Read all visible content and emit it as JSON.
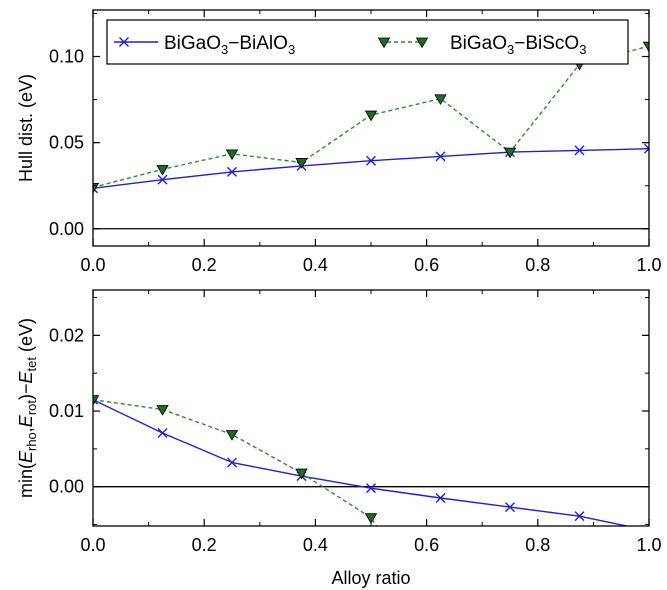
{
  "chart_data": [
    {
      "type": "line",
      "xlabel": "",
      "ylabel": "Hull dist. (eV)",
      "xlim": [
        0,
        1
      ],
      "ylim": [
        -0.01,
        0.127
      ],
      "xticks": [
        "0.0",
        "0.2",
        "0.4",
        "0.6",
        "0.8",
        "1.0"
      ],
      "yticks": [
        "0.00",
        "0.05",
        "0.10"
      ],
      "reference_line": 0,
      "grid": false,
      "legend": "top",
      "series": [
        {
          "name": "BiGaO3−BiAlO3",
          "name_parts": {
            "a": "BiGaO",
            "a_sub": "3",
            "sep": "−BiAlO",
            "b_sub": "3"
          },
          "marker": "x",
          "line": "solid",
          "color": "#1f1fd6",
          "x": [
            0,
            0.125,
            0.25,
            0.375,
            0.5,
            0.625,
            0.75,
            0.875,
            1.0
          ],
          "y": [
            0.0235,
            0.0285,
            0.033,
            0.0365,
            0.0395,
            0.042,
            0.0445,
            0.0455,
            0.0465
          ]
        },
        {
          "name": "BiGaO3−BiScO3",
          "name_parts": {
            "a": "BiGaO",
            "a_sub": "3",
            "sep": "−BiScO",
            "b_sub": "3"
          },
          "marker": "triangle-down",
          "line": "dashed",
          "color": "#2e8b2e",
          "fill": "#1f6b1f",
          "x": [
            0,
            0.125,
            0.25,
            0.375,
            0.5,
            0.625,
            0.75,
            0.875,
            1.0
          ],
          "y": [
            0.024,
            0.0345,
            0.0435,
            0.0385,
            0.066,
            0.0755,
            0.0445,
            0.0955,
            0.106
          ]
        }
      ]
    },
    {
      "type": "line",
      "xlabel": "Alloy ratio",
      "ylabel_parts": {
        "pre": "min(",
        "e1": "E",
        "s1": "rho",
        "comma": ",",
        "e2": "E",
        "s2": "rot",
        "mid": ")−",
        "e3": "E",
        "s3": "tet",
        "unit": " (eV)"
      },
      "xlim": [
        0,
        1
      ],
      "ylim": [
        -0.0052,
        0.026
      ],
      "xticks": [
        "0.0",
        "0.2",
        "0.4",
        "0.6",
        "0.8",
        "1.0"
      ],
      "yticks": [
        "0.00",
        "0.01",
        "0.02"
      ],
      "reference_line": 0,
      "grid": false,
      "series": [
        {
          "name": "BiGaO3−BiAlO3",
          "marker": "x",
          "line": "solid",
          "color": "#1f1fd6",
          "x": [
            0,
            0.125,
            0.25,
            0.375,
            0.5,
            0.625,
            0.75,
            0.875,
            0.96
          ],
          "y": [
            0.0115,
            0.0071,
            0.0032,
            0.0014,
            -0.0002,
            -0.0015,
            -0.0027,
            -0.0039,
            -0.0052
          ],
          "marked_points": 8
        },
        {
          "name": "BiGaO3−BiScO3",
          "marker": "triangle-down",
          "line": "dashed",
          "color": "#2e8b2e",
          "fill": "#1f6b1f",
          "x": [
            0,
            0.125,
            0.25,
            0.375,
            0.5,
            0.51
          ],
          "y": [
            0.0115,
            0.0102,
            0.0069,
            0.0018,
            -0.0041,
            -0.0052
          ],
          "marked_points": 5
        }
      ]
    }
  ]
}
